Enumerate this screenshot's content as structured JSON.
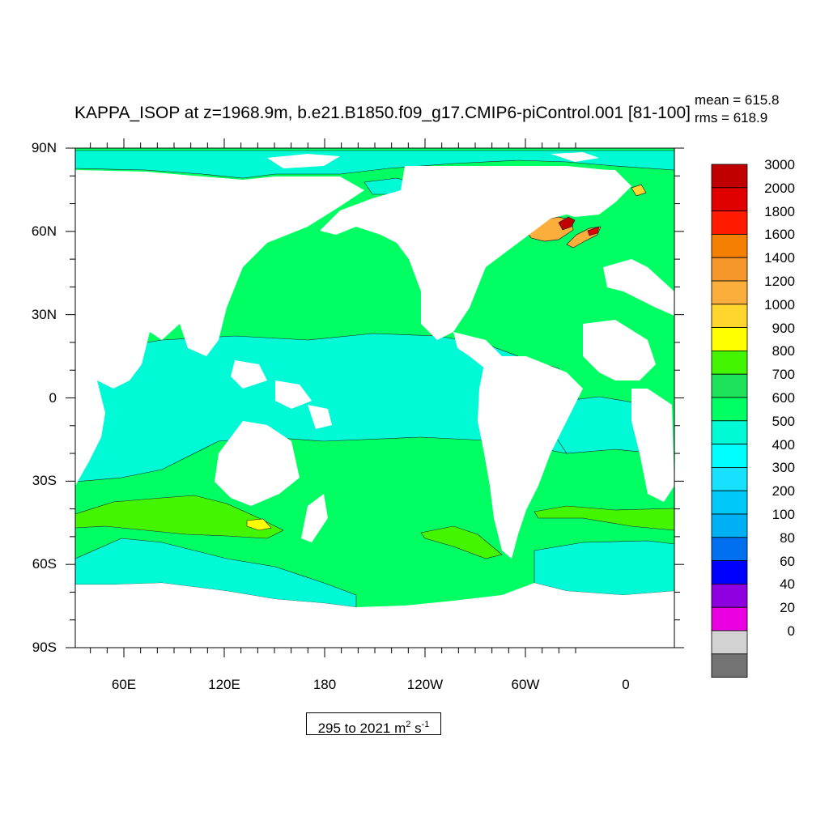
{
  "title": "KAPPA_ISOP at z=1968.9m, b.e21.B1850.f09_g17.CMIP6-piControl.001 [81-100]",
  "stats": {
    "mean": "mean = 615.8",
    "rms": "rms = 618.9"
  },
  "units": {
    "range": "295 to 2021",
    "unit_base1": "m",
    "unit_exp1": "2",
    "unit_base2": "s",
    "unit_exp2": "-1"
  },
  "axes": {
    "lat_labels": [
      "90N",
      "60N",
      "30N",
      "0",
      "30S",
      "60S",
      "90S"
    ],
    "lon_labels": [
      "60E",
      "120E",
      "180",
      "120W",
      "60W",
      "0"
    ]
  },
  "colorbar": {
    "levels": [
      "3000",
      "2000",
      "1800",
      "1600",
      "1400",
      "1200",
      "1000",
      "900",
      "800",
      "700",
      "600",
      "500",
      "400",
      "300",
      "200",
      "100",
      "80",
      "60",
      "40",
      "20",
      "0"
    ],
    "colors": [
      "#c00000",
      "#e00000",
      "#ff1a00",
      "#f47f00",
      "#f7962a",
      "#fbae3c",
      "#ffd52e",
      "#ffff00",
      "#44f500",
      "#1de25a",
      "#00ff63",
      "#00fad5",
      "#00ffff",
      "#18e0ff",
      "#00c8f8",
      "#00b0f5",
      "#0070f0",
      "#0000ff",
      "#8e00e0",
      "#ea00e0",
      "#d2d2d2",
      "#737373"
    ]
  },
  "chart_data": {
    "type": "map",
    "variable": "KAPPA_ISOP",
    "depth": "z=1968.9m",
    "mean": 615.8,
    "rms": 618.9,
    "min": 295,
    "max": 2021,
    "lat_range": [
      -90,
      90
    ],
    "lon_range_centered": 210,
    "regions": [
      {
        "region": "Southern Ocean band ~45S",
        "value_range": [
          700,
          800
        ]
      },
      {
        "region": "Southeast Pacific",
        "value_range": [
          600,
          700
        ]
      },
      {
        "region": "North Pacific",
        "value_range": [
          600,
          700
        ]
      },
      {
        "region": "North Atlantic",
        "value_range": [
          600,
          700
        ]
      },
      {
        "region": "Tropical Pacific/Indian",
        "value_range": [
          500,
          600
        ]
      },
      {
        "region": "Arctic",
        "value_range": [
          500,
          600
        ]
      },
      {
        "region": "Labrador/Irminger Sea",
        "value_range": [
          1000,
          3000
        ]
      }
    ]
  }
}
